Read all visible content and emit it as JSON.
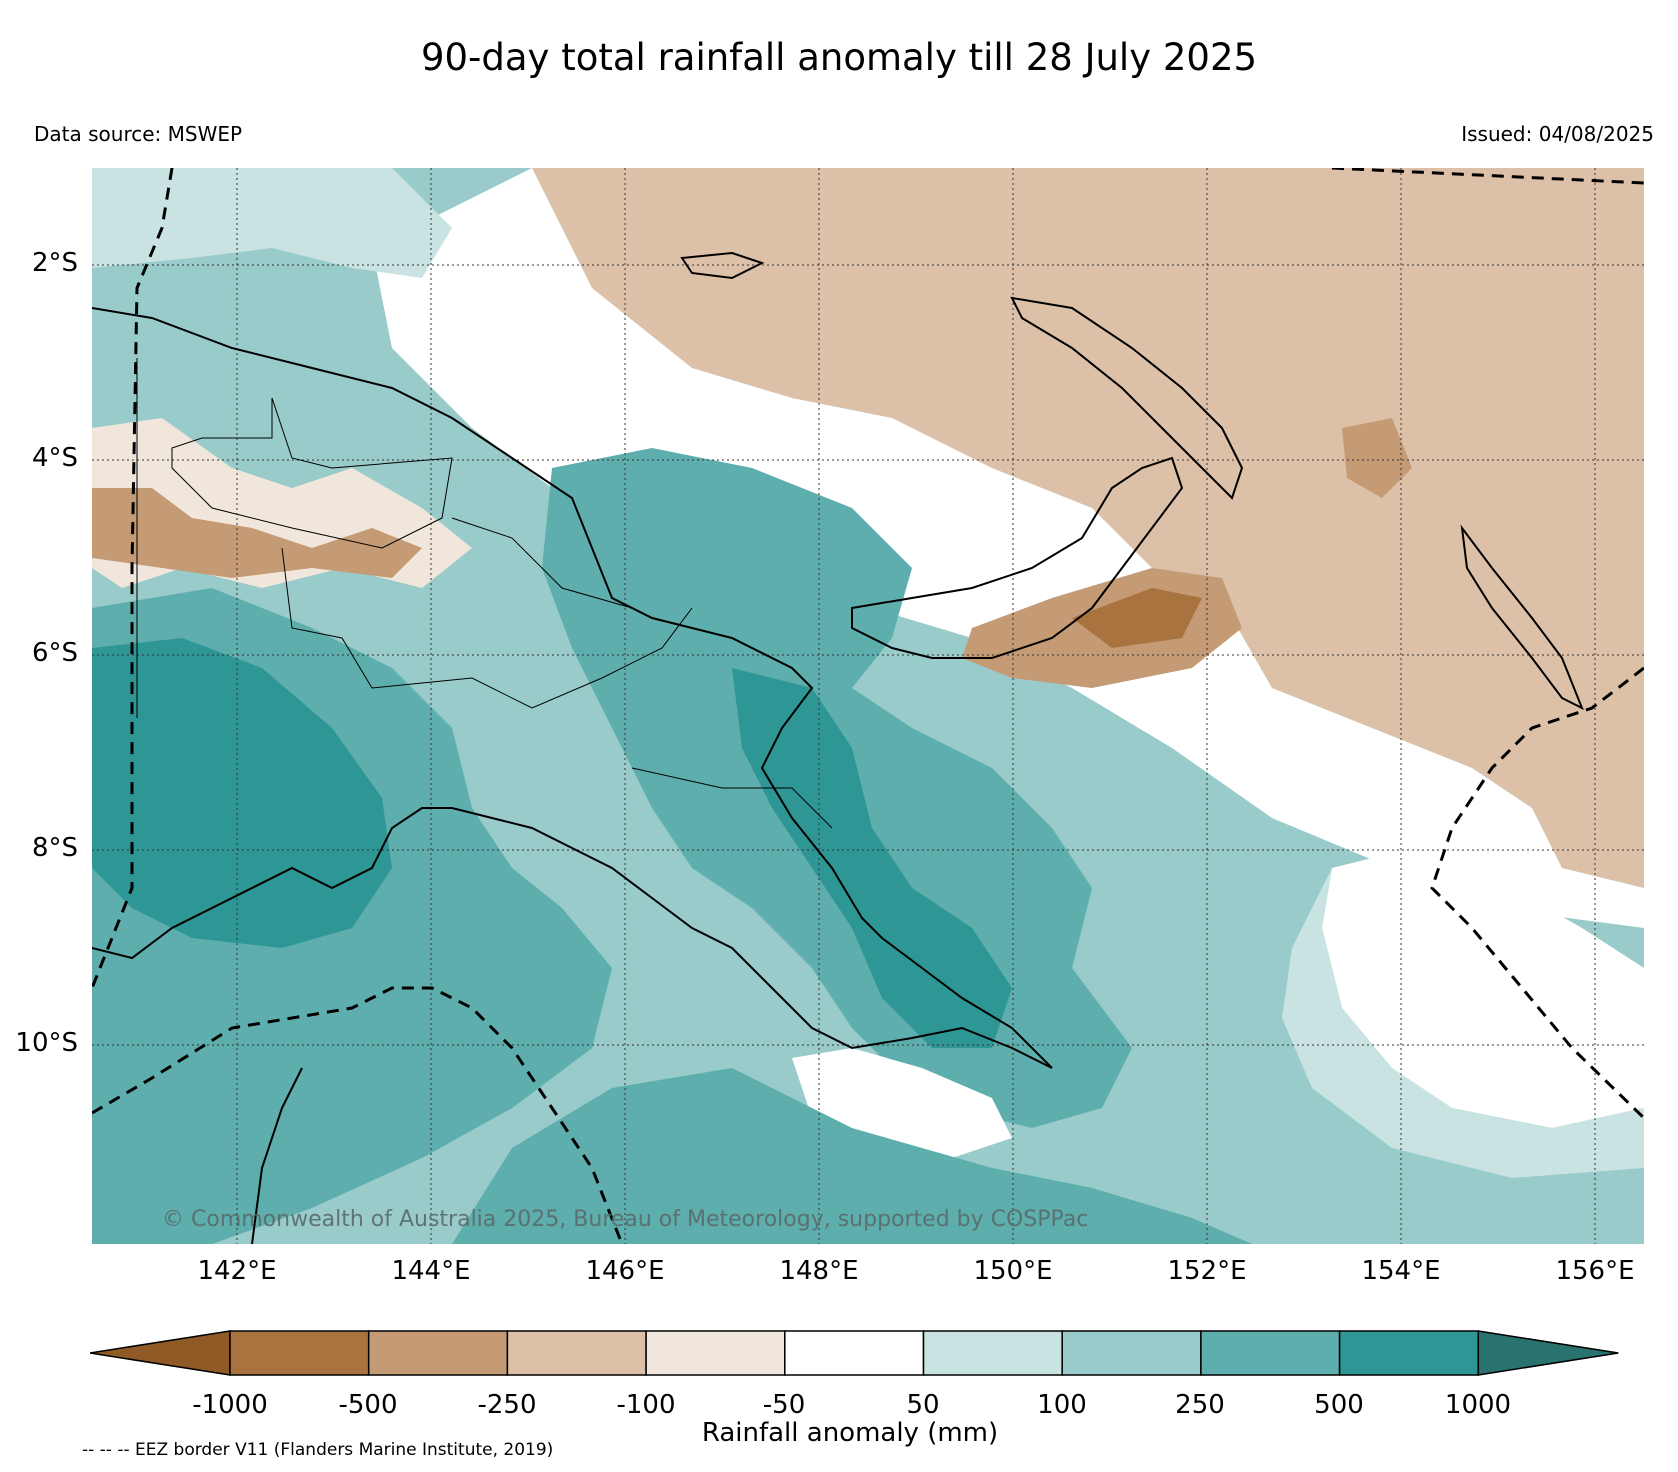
{
  "title": "90-day total rainfall anomaly till 28 July 2025",
  "data_source": "Data source: MSWEP",
  "issued": "Issued: 04/08/2025",
  "copyright": "© Commonwealth of Australia 2025, Bureau of Meteorology, supported by COSPPac",
  "lat_labels": [
    "2°S",
    "4°S",
    "6°S",
    "8°S",
    "10°S"
  ],
  "lon_labels": [
    "142°E",
    "144°E",
    "146°E",
    "148°E",
    "150°E",
    "152°E",
    "154°E",
    "156°E"
  ],
  "colorbar": {
    "label": "Rainfall anomaly (mm)",
    "ticks": [
      "-1000",
      "-500",
      "-250",
      "-100",
      "-50",
      "50",
      "100",
      "250",
      "500",
      "1000"
    ],
    "colors": [
      "#8f5a25",
      "#a8733f",
      "#c49b74",
      "#dcc1a8",
      "#f1e6dc",
      "#ffffff",
      "#c8e3e1",
      "#98cbca",
      "#5daeac",
      "#2e9694",
      "#28726f"
    ]
  },
  "eez_note": "-- -- -- EEZ border V11 (Flanders Marine Institute, 2019)"
}
